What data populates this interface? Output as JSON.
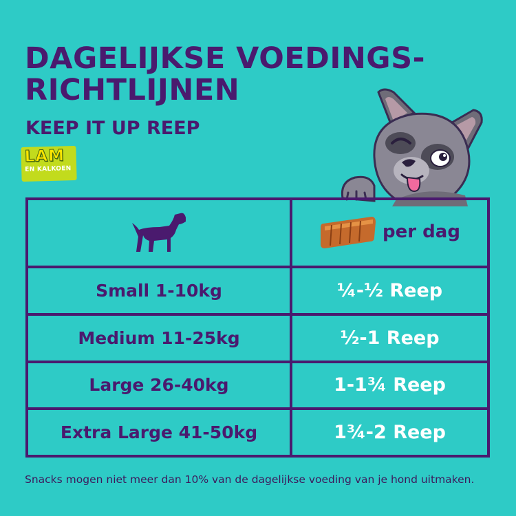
{
  "header": {
    "title_line1": "DAGELIJKSE VOEDINGS-",
    "title_line2": "RICHTLIJNEN",
    "subtitle": "KEEP IT UP REEP"
  },
  "badge": {
    "main": "LAM",
    "sub": "EN KALKOEN"
  },
  "table": {
    "header_right": "per dag",
    "rows": [
      {
        "weight": "Small 1-10kg",
        "amount": "¼-½ Reep"
      },
      {
        "weight": "Medium 11-25kg",
        "amount": "½-1 Reep"
      },
      {
        "weight": "Large 26-40kg",
        "amount": "1-1¾ Reep"
      },
      {
        "weight": "Extra Large 41-50kg",
        "amount": "1¾-2 Reep"
      }
    ]
  },
  "footnote": "Snacks mogen niet meer dan 10% van de dagelijkse voeding van je hond uitmaken.",
  "icons": {
    "dog": "dog-silhouette-icon",
    "treat": "treat-bar-icon",
    "mascot": "french-bulldog-illustration"
  },
  "colors": {
    "background": "#2ecbc6",
    "primary": "#4a1a6e",
    "badge": "#c2db1d",
    "amount_text": "#ffffff"
  }
}
